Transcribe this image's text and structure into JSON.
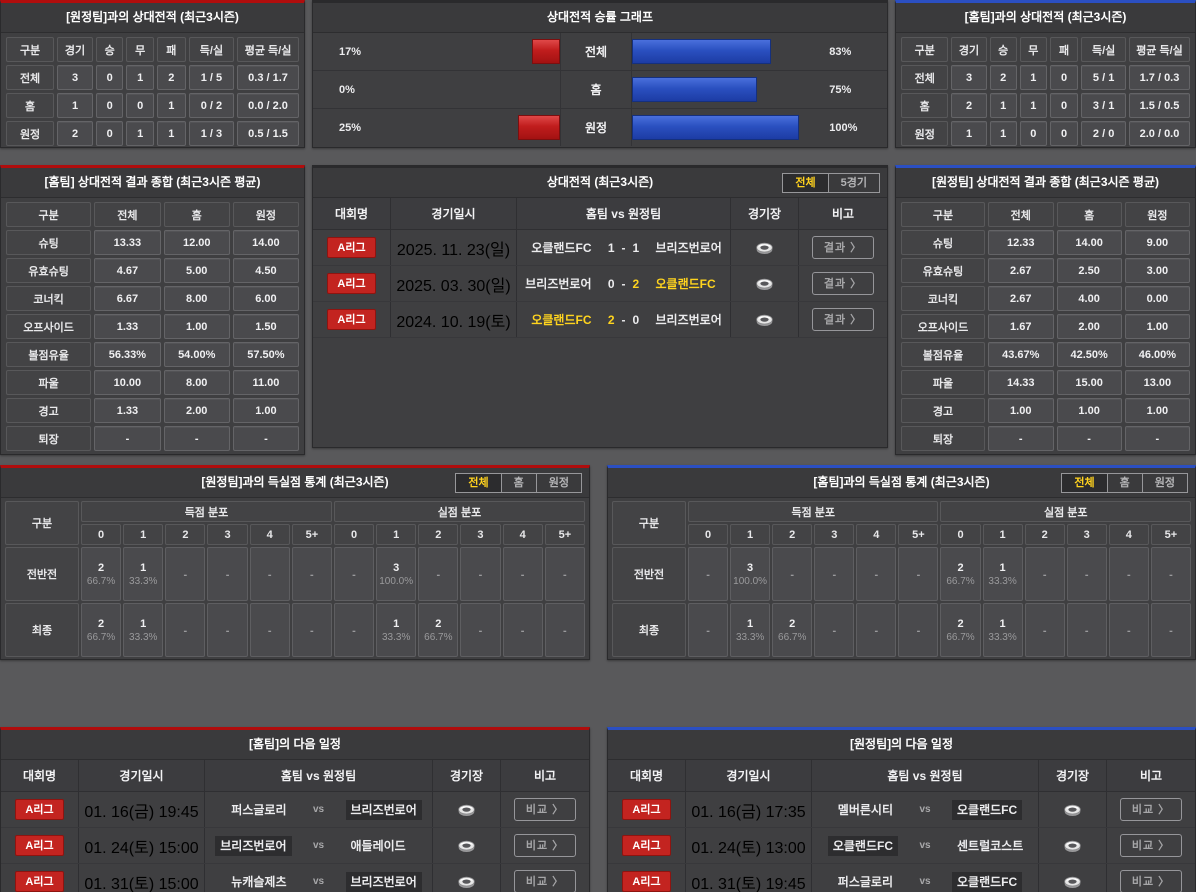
{
  "colors": {
    "accent_red": "#b00d0d",
    "accent_blue": "#2b4fc2",
    "bar_red": "#c01d1d",
    "bar_blue": "#2a50c0",
    "active_tab_yellow": "#ffd21e",
    "winner_yellow": "#ffd41e",
    "league_badge_red": "#c32420"
  },
  "h2h_vs_away": {
    "title": "[원정팀]과의 상대전적 (최근3시즌)",
    "headers": [
      "구분",
      "경기",
      "승",
      "무",
      "패",
      "득/실",
      "평균 득/실"
    ],
    "rows": [
      {
        "label": "전체",
        "cells": [
          "3",
          "0",
          "1",
          "2",
          "1 / 5",
          "0.3 / 1.7"
        ]
      },
      {
        "label": "홈",
        "cells": [
          "1",
          "0",
          "0",
          "1",
          "0 / 2",
          "0.0 / 2.0"
        ]
      },
      {
        "label": "원정",
        "cells": [
          "2",
          "0",
          "1",
          "1",
          "1 / 3",
          "0.5 / 1.5"
        ]
      }
    ]
  },
  "winrate_chart": {
    "type": "bar",
    "title": "상대전적 승률 그래프",
    "rows": [
      {
        "left_pct": "17%",
        "left_value": 17,
        "label": "전체",
        "right_value": 83,
        "right_pct": "83%"
      },
      {
        "left_pct": "0%",
        "left_value": 0,
        "label": "홈",
        "right_value": 75,
        "right_pct": "75%"
      },
      {
        "left_pct": "25%",
        "left_value": 25,
        "label": "원정",
        "right_value": 100,
        "right_pct": "100%"
      }
    ]
  },
  "h2h_vs_home": {
    "title": "[홈팀]과의 상대전적 (최근3시즌)",
    "headers": [
      "구분",
      "경기",
      "승",
      "무",
      "패",
      "득/실",
      "평균 득/실"
    ],
    "rows": [
      {
        "label": "전체",
        "cells": [
          "3",
          "2",
          "1",
          "0",
          "5 / 1",
          "1.7 / 0.3"
        ]
      },
      {
        "label": "홈",
        "cells": [
          "2",
          "1",
          "1",
          "0",
          "3 / 1",
          "1.5 / 0.5"
        ]
      },
      {
        "label": "원정",
        "cells": [
          "1",
          "1",
          "0",
          "0",
          "2 / 0",
          "2.0 / 0.0"
        ]
      }
    ]
  },
  "summary_home": {
    "title": "[홈팀] 상대전적 결과 종합 (최근3시즌 평균)",
    "headers": [
      "구분",
      "전체",
      "홈",
      "원정"
    ],
    "rows": [
      {
        "label": "슈팅",
        "cells": [
          "13.33",
          "12.00",
          "14.00"
        ]
      },
      {
        "label": "유효슈팅",
        "cells": [
          "4.67",
          "5.00",
          "4.50"
        ]
      },
      {
        "label": "코너킥",
        "cells": [
          "6.67",
          "8.00",
          "6.00"
        ]
      },
      {
        "label": "오프사이드",
        "cells": [
          "1.33",
          "1.00",
          "1.50"
        ]
      },
      {
        "label": "볼점유율",
        "cells": [
          "56.33%",
          "54.00%",
          "57.50%"
        ]
      },
      {
        "label": "파울",
        "cells": [
          "10.00",
          "8.00",
          "11.00"
        ]
      },
      {
        "label": "경고",
        "cells": [
          "1.33",
          "2.00",
          "1.00"
        ]
      },
      {
        "label": "퇴장",
        "cells": [
          "-",
          "-",
          "-"
        ]
      }
    ]
  },
  "matches": {
    "title": "상대전적 (최근3시즌)",
    "tabs": [
      {
        "label": "전체",
        "active": true
      },
      {
        "label": "5경기",
        "active": false
      }
    ],
    "columns": [
      "대회명",
      "경기일시",
      "홈팀 vs 원정팀",
      "경기장",
      "비고"
    ],
    "button_label": "결과 〉",
    "rows": [
      {
        "league": "A리그",
        "date": "2025. 11. 23(일)",
        "home": "오클랜드FC",
        "home_score": "1",
        "away_score": "1",
        "away": "브리즈번로어",
        "winner": "none"
      },
      {
        "league": "A리그",
        "date": "2025. 03. 30(일)",
        "home": "브리즈번로어",
        "home_score": "0",
        "away_score": "2",
        "away": "오클랜드FC",
        "winner": "away"
      },
      {
        "league": "A리그",
        "date": "2024. 10. 19(토)",
        "home": "오클랜드FC",
        "home_score": "2",
        "away_score": "0",
        "away": "브리즈번로어",
        "winner": "home"
      }
    ]
  },
  "summary_away": {
    "title": "[원정팀] 상대전적 결과 종합 (최근3시즌 평균)",
    "headers": [
      "구분",
      "전체",
      "홈",
      "원정"
    ],
    "rows": [
      {
        "label": "슈팅",
        "cells": [
          "12.33",
          "14.00",
          "9.00"
        ]
      },
      {
        "label": "유효슈팅",
        "cells": [
          "2.67",
          "2.50",
          "3.00"
        ]
      },
      {
        "label": "코너킥",
        "cells": [
          "2.67",
          "4.00",
          "0.00"
        ]
      },
      {
        "label": "오프사이드",
        "cells": [
          "1.67",
          "2.00",
          "1.00"
        ]
      },
      {
        "label": "볼점유율",
        "cells": [
          "43.67%",
          "42.50%",
          "46.00%"
        ]
      },
      {
        "label": "파울",
        "cells": [
          "14.33",
          "15.00",
          "13.00"
        ]
      },
      {
        "label": "경고",
        "cells": [
          "1.00",
          "1.00",
          "1.00"
        ]
      },
      {
        "label": "퇴장",
        "cells": [
          "-",
          "-",
          "-"
        ]
      }
    ]
  },
  "goals_vs_away": {
    "title": "[원정팀]과의 득실점 통계 (최근3시즌)",
    "tabs": [
      {
        "label": "전체",
        "active": true
      },
      {
        "label": "홈",
        "active": false
      },
      {
        "label": "원정",
        "active": false
      }
    ],
    "corner_header": "구분",
    "group_headers": [
      "득점 분포",
      "실점 분포"
    ],
    "score_cols": [
      "0",
      "1",
      "2",
      "3",
      "4",
      "5+"
    ],
    "rows": [
      {
        "label": "전반전",
        "scored": [
          {
            "n": "2",
            "p": "66.7%"
          },
          {
            "n": "1",
            "p": "33.3%"
          },
          null,
          null,
          null,
          null
        ],
        "conceded": [
          null,
          {
            "n": "3",
            "p": "100.0%"
          },
          null,
          null,
          null,
          null
        ]
      },
      {
        "label": "최종",
        "scored": [
          {
            "n": "2",
            "p": "66.7%"
          },
          {
            "n": "1",
            "p": "33.3%"
          },
          null,
          null,
          null,
          null
        ],
        "conceded": [
          null,
          {
            "n": "1",
            "p": "33.3%"
          },
          {
            "n": "2",
            "p": "66.7%"
          },
          null,
          null,
          null
        ]
      }
    ]
  },
  "goals_vs_home": {
    "title": "[홈팀]과의 득실점 통계 (최근3시즌)",
    "tabs": [
      {
        "label": "전체",
        "active": true
      },
      {
        "label": "홈",
        "active": false
      },
      {
        "label": "원정",
        "active": false
      }
    ],
    "corner_header": "구분",
    "group_headers": [
      "득점 분포",
      "실점 분포"
    ],
    "score_cols": [
      "0",
      "1",
      "2",
      "3",
      "4",
      "5+"
    ],
    "rows": [
      {
        "label": "전반전",
        "scored": [
          null,
          {
            "n": "3",
            "p": "100.0%"
          },
          null,
          null,
          null,
          null
        ],
        "conceded": [
          {
            "n": "2",
            "p": "66.7%"
          },
          {
            "n": "1",
            "p": "33.3%"
          },
          null,
          null,
          null,
          null
        ]
      },
      {
        "label": "최종",
        "scored": [
          null,
          {
            "n": "1",
            "p": "33.3%"
          },
          {
            "n": "2",
            "p": "66.7%"
          },
          null,
          null,
          null
        ],
        "conceded": [
          {
            "n": "2",
            "p": "66.7%"
          },
          {
            "n": "1",
            "p": "33.3%"
          },
          null,
          null,
          null,
          null
        ]
      }
    ]
  },
  "schedule_home": {
    "title": "[홈팀]의 다음 일정",
    "columns": [
      "대회명",
      "경기일시",
      "홈팀 vs 원정팀",
      "경기장",
      "비고"
    ],
    "vs_label": "vs",
    "button_label": "비교 〉",
    "rows": [
      {
        "league": "A리그",
        "date": "01. 16(금) 19:45",
        "home": "퍼스글로리",
        "away": "브리즈번로어",
        "highlight": "away"
      },
      {
        "league": "A리그",
        "date": "01. 24(토) 15:00",
        "home": "브리즈번로어",
        "away": "애들레이드",
        "highlight": "home"
      },
      {
        "league": "A리그",
        "date": "01. 31(토) 15:00",
        "home": "뉴캐슬제츠",
        "away": "브리즈번로어",
        "highlight": "away"
      }
    ]
  },
  "schedule_away": {
    "title": "[원정팀]의 다음 일정",
    "columns": [
      "대회명",
      "경기일시",
      "홈팀 vs 원정팀",
      "경기장",
      "비고"
    ],
    "vs_label": "vs",
    "button_label": "비교 〉",
    "rows": [
      {
        "league": "A리그",
        "date": "01. 16(금) 17:35",
        "home": "멜버른시티",
        "away": "오클랜드FC",
        "highlight": "away"
      },
      {
        "league": "A리그",
        "date": "01. 24(토) 13:00",
        "home": "오클랜드FC",
        "away": "센트럴코스트",
        "highlight": "home"
      },
      {
        "league": "A리그",
        "date": "01. 31(토) 19:45",
        "home": "퍼스글로리",
        "away": "오클랜드FC",
        "highlight": "away"
      }
    ]
  }
}
